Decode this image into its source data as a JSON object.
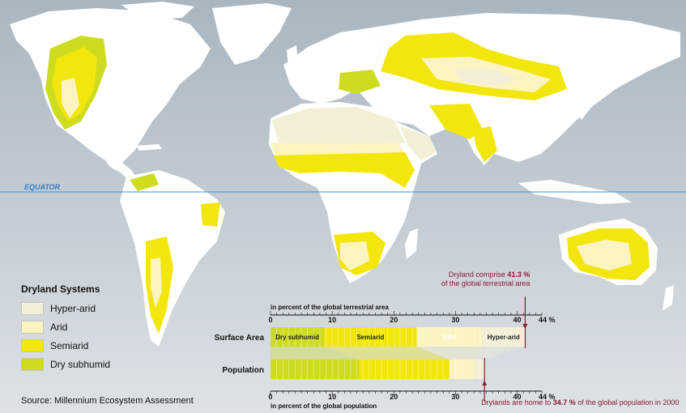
{
  "equator_label": "EQUATOR",
  "legend": {
    "title": "Dryland Systems",
    "items": [
      {
        "label": "Hyper-arid",
        "color": "#f3efd6"
      },
      {
        "label": "Arid",
        "color": "#fbf3c0"
      },
      {
        "label": "Semiarid",
        "color": "#f2e60c"
      },
      {
        "label": "Dry subhumid",
        "color": "#cddc1e"
      }
    ]
  },
  "source": "Source: Millennium Ecosystem Assessment",
  "colors": {
    "ocean_top": "#a9b6c0",
    "ocean_bottom": "#dde2e6",
    "land": "#ffffff",
    "equator": "#3b8fd6",
    "marker": "#8b1a2e",
    "hyper_arid": "#f3efd6",
    "arid": "#fbf3c0",
    "semiarid": "#f2e60c",
    "dry_subhumid": "#cddc1e"
  },
  "chart_data": {
    "type": "bar",
    "axis_top_label": "in percent of the global terrestrial area",
    "axis_bottom_label": "in percent of the global population",
    "ticks": [
      "0",
      "10",
      "20",
      "30",
      "40"
    ],
    "tick_values": [
      0,
      10,
      20,
      30,
      40
    ],
    "axis_max_label": "44 %",
    "xlim": [
      0,
      44
    ],
    "rows": [
      {
        "label": "Surface Area",
        "total": 41.3,
        "segments": [
          {
            "name": "Dry subhumid",
            "start": 0,
            "end": 8.7
          },
          {
            "name": "Semiarid",
            "start": 8.7,
            "end": 23.7
          },
          {
            "name": "Arid",
            "start": 23.7,
            "end": 34.3
          },
          {
            "name": "Hyper-arid",
            "start": 34.3,
            "end": 41.3
          }
        ]
      },
      {
        "label": "Population",
        "total": 34.7,
        "segments": [
          {
            "name": "Dry subhumid",
            "start": 0,
            "end": 14.4
          },
          {
            "name": "Semiarid",
            "start": 14.4,
            "end": 29.0
          },
          {
            "name": "Arid",
            "start": 29.0,
            "end": 33.0
          },
          {
            "name": "Hyper-arid",
            "start": 33.0,
            "end": 34.7
          }
        ]
      }
    ],
    "annotations": {
      "area": {
        "prefix": "Dryland comprise",
        "value": "41.3 %",
        "suffix": "of the global terrestrial area"
      },
      "population": {
        "prefix": "Drylands are home to",
        "value": "34.7 %",
        "suffix": "of the global population in 2000"
      }
    }
  }
}
